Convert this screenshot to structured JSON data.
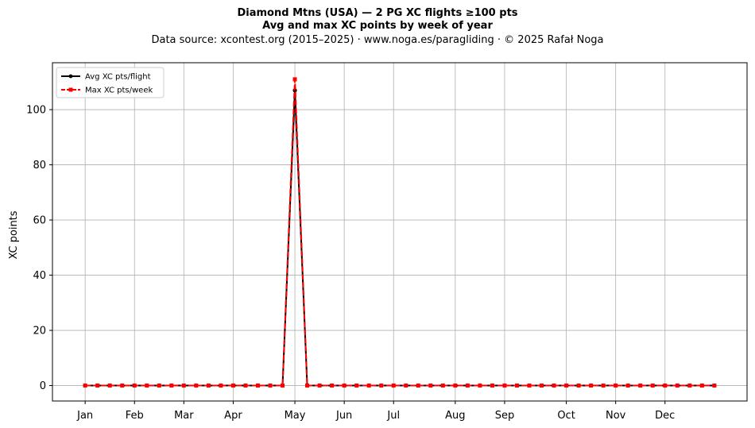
{
  "header": {
    "line1": "Diamond Mtns (USA)  —  2 PG XC flights ≥100 pts",
    "line2": "Avg and max XC points by week of year",
    "line3": "Data source: xcontest.org (2015–2025)  ·  www.noga.es/paragliding  ·  © 2025 Rafał Noga"
  },
  "chart_data": {
    "type": "line",
    "ylabel": "XC points",
    "xlabel": "",
    "ylim": [
      -5.6,
      117
    ],
    "xlim": [
      -1.65,
      54.65
    ],
    "yticks": [
      0,
      20,
      40,
      60,
      80,
      100
    ],
    "xticks": [
      {
        "label": "Jan",
        "week": 1
      },
      {
        "label": "Feb",
        "week": 5
      },
      {
        "label": "Mar",
        "week": 9
      },
      {
        "label": "Apr",
        "week": 13
      },
      {
        "label": "May",
        "week": 18
      },
      {
        "label": "Jun",
        "week": 22
      },
      {
        "label": "Jul",
        "week": 26
      },
      {
        "label": "Aug",
        "week": 31
      },
      {
        "label": "Sep",
        "week": 35
      },
      {
        "label": "Oct",
        "week": 40
      },
      {
        "label": "Nov",
        "week": 44
      },
      {
        "label": "Dec",
        "week": 48
      }
    ],
    "x": [
      1,
      2,
      3,
      4,
      5,
      6,
      7,
      8,
      9,
      10,
      11,
      12,
      13,
      14,
      15,
      16,
      17,
      18,
      19,
      20,
      21,
      22,
      23,
      24,
      25,
      26,
      27,
      28,
      29,
      30,
      31,
      32,
      33,
      34,
      35,
      36,
      37,
      38,
      39,
      40,
      41,
      42,
      43,
      44,
      45,
      46,
      47,
      48,
      49,
      50,
      51,
      52
    ],
    "grid": true,
    "legend_position": "upper-left",
    "series": [
      {
        "name": "Avg XC pts/flight",
        "color": "#000000",
        "style": "solid",
        "marker": "circle",
        "values": [
          0,
          0,
          0,
          0,
          0,
          0,
          0,
          0,
          0,
          0,
          0,
          0,
          0,
          0,
          0,
          0,
          0,
          107,
          0,
          0,
          0,
          0,
          0,
          0,
          0,
          0,
          0,
          0,
          0,
          0,
          0,
          0,
          0,
          0,
          0,
          0,
          0,
          0,
          0,
          0,
          0,
          0,
          0,
          0,
          0,
          0,
          0,
          0,
          0,
          0,
          0,
          0
        ]
      },
      {
        "name": "Max XC pts/week",
        "color": "#ff0000",
        "style": "dashed",
        "marker": "square",
        "values": [
          0,
          0,
          0,
          0,
          0,
          0,
          0,
          0,
          0,
          0,
          0,
          0,
          0,
          0,
          0,
          0,
          0,
          111,
          0,
          0,
          0,
          0,
          0,
          0,
          0,
          0,
          0,
          0,
          0,
          0,
          0,
          0,
          0,
          0,
          0,
          0,
          0,
          0,
          0,
          0,
          0,
          0,
          0,
          0,
          0,
          0,
          0,
          0,
          0,
          0,
          0,
          0
        ]
      }
    ]
  }
}
